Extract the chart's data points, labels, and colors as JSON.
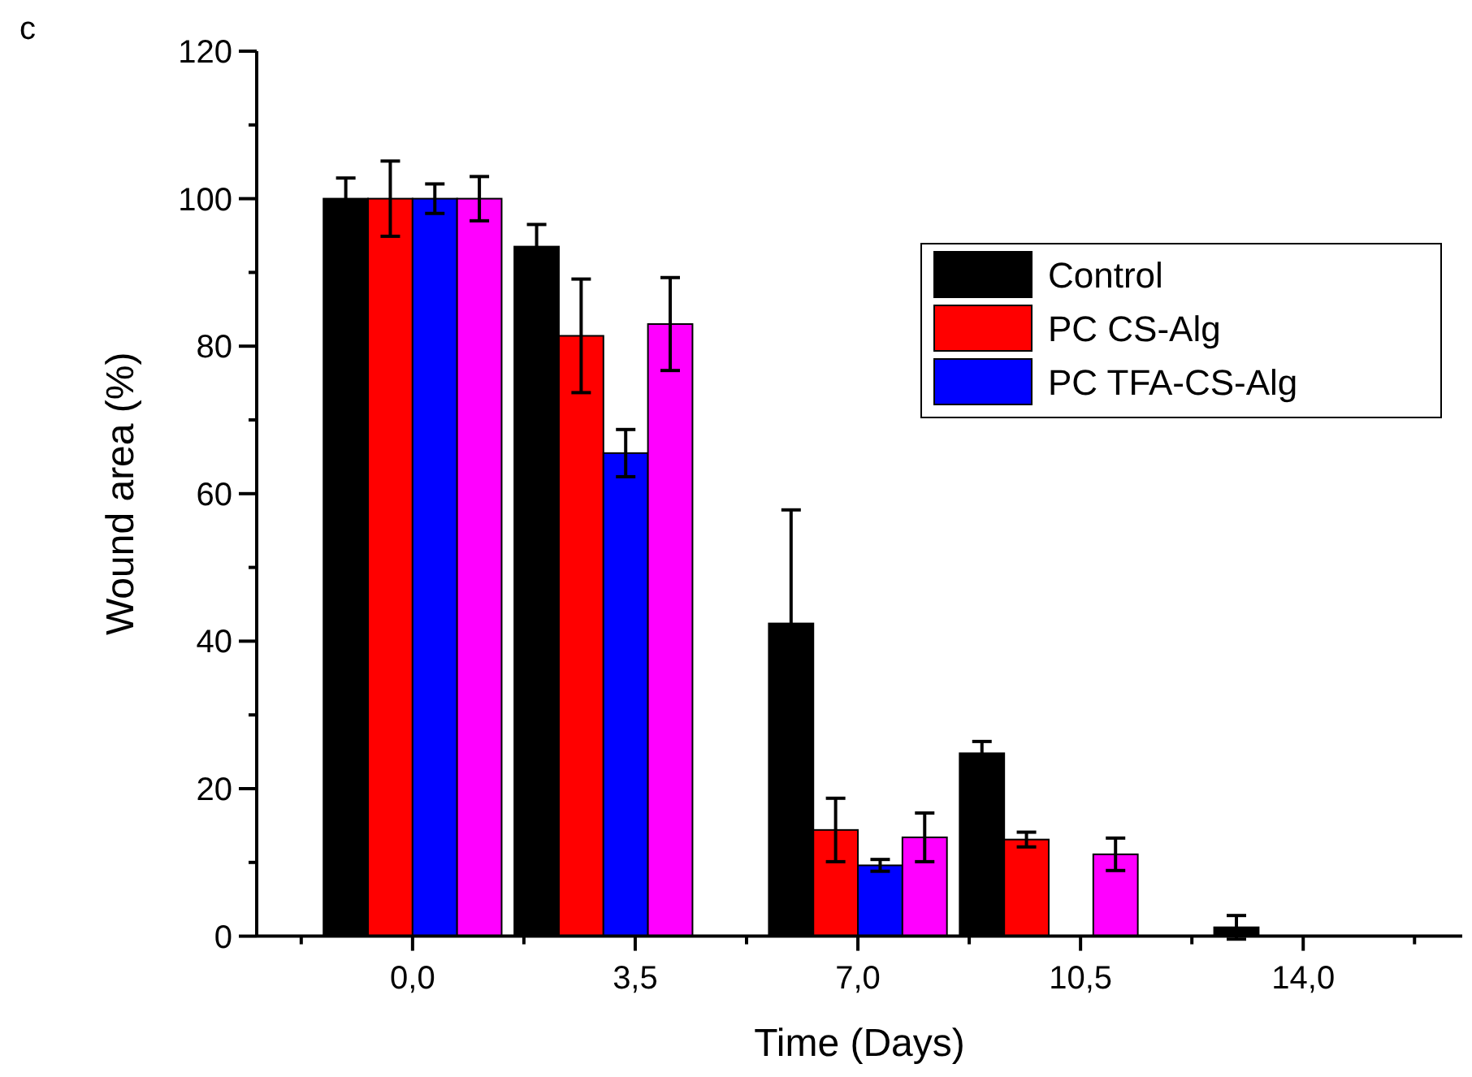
{
  "chart_data": {
    "type": "bar",
    "xlabel": "Time (Days)",
    "ylabel": "Wound area (%)",
    "annotations": [
      "c"
    ],
    "xlim": [
      -2.45,
      16.5
    ],
    "ylim": [
      0,
      120
    ],
    "xticks": [
      {
        "value": -1.75,
        "label": null
      },
      {
        "value": 0,
        "label": "0,0"
      },
      {
        "value": 1.75,
        "label": null
      },
      {
        "value": 3.5,
        "label": "3,5"
      },
      {
        "value": 5.25,
        "label": null
      },
      {
        "value": 7,
        "label": "7,0"
      },
      {
        "value": 8.75,
        "label": null
      },
      {
        "value": 10.5,
        "label": "10,5"
      },
      {
        "value": 12.25,
        "label": null
      },
      {
        "value": 14,
        "label": "14,0"
      },
      {
        "value": 15.75,
        "label": null
      }
    ],
    "yticks": [
      0,
      {
        "value": 10,
        "label": null
      },
      20,
      {
        "value": 30,
        "label": null
      },
      40,
      {
        "value": 50,
        "label": null
      },
      60,
      {
        "value": 70,
        "label": null
      },
      80,
      {
        "value": 90,
        "label": null
      },
      100,
      {
        "value": 110,
        "label": null
      },
      120
    ],
    "legend": "top right",
    "grid": false,
    "series": [
      {
        "name": "Control",
        "color": "#000000",
        "x": [
          -1.05,
          1.95,
          5.95,
          8.95,
          12.95
        ],
        "values": [
          100,
          93.5,
          42.4,
          24.8,
          1.2
        ],
        "errors": [
          2.8,
          3,
          15.4,
          1.6,
          1.6
        ]
      },
      {
        "name": "PC CS-Alg",
        "color": "#ff0000",
        "x": [
          -0.35,
          2.65,
          6.65,
          9.65
        ],
        "values": [
          100,
          81.4,
          14.4,
          13.1
        ],
        "errors": [
          5.1,
          7.7,
          4.3,
          1
        ]
      },
      {
        "name": "PC TFA-CS-Alg",
        "color": "#0000ff",
        "x": [
          0.35,
          3.35,
          7.35
        ],
        "values": [
          100,
          65.5,
          9.6
        ],
        "errors": [
          2,
          3.2,
          0.8
        ]
      },
      {
        "color": "#ff00ff",
        "x": [
          1.05,
          4.05,
          8.05,
          11.05
        ],
        "values": [
          100,
          83,
          13.4,
          11.1
        ],
        "errors": [
          3,
          6.3,
          3.3,
          2.2
        ]
      }
    ]
  }
}
